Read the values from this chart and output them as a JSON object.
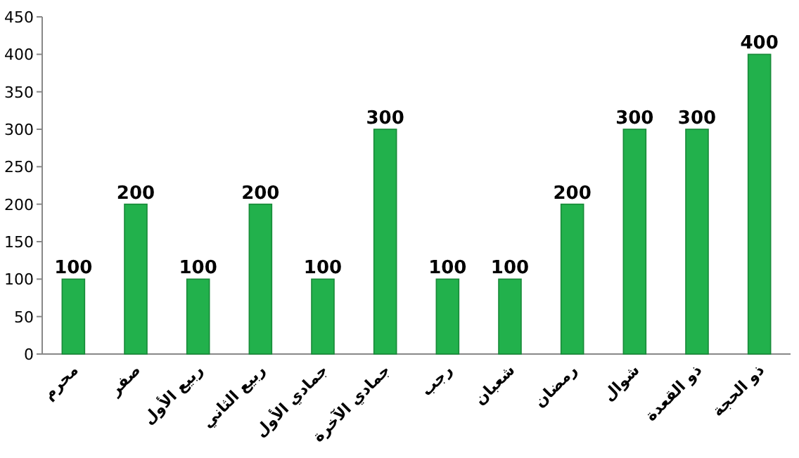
{
  "chart_data": {
    "type": "bar",
    "categories": [
      "محرم",
      "صفر",
      "ربيع الأول",
      "ربيع الثاني",
      "جمادي الأول",
      "جمادي الآخرة",
      "رجب",
      "شعبان",
      "رمضان",
      "شوال",
      "ذو القعدة",
      "ذو الحجة"
    ],
    "values": [
      100,
      200,
      100,
      200,
      100,
      300,
      100,
      100,
      200,
      300,
      300,
      400
    ],
    "color": "#22b14c",
    "ylim": [
      0,
      450
    ],
    "yticks": [
      0,
      50,
      100,
      150,
      200,
      250,
      300,
      350,
      400,
      450
    ],
    "data_labels": true,
    "grid": false
  }
}
